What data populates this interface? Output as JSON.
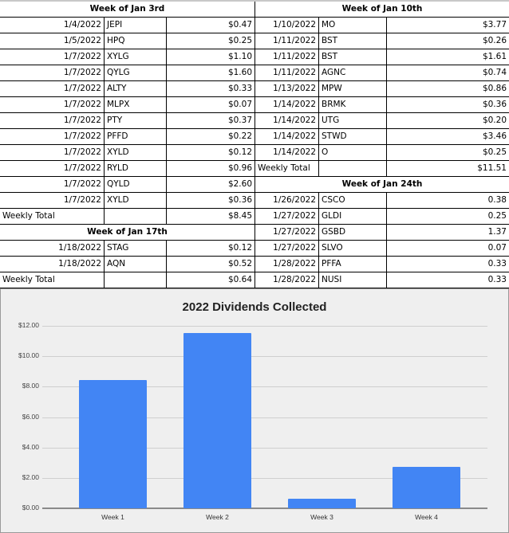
{
  "tables": {
    "week1": {
      "title": "Week of Jan 3rd",
      "rows": [
        {
          "date": "1/4/2022",
          "ticker": "JEPI",
          "amount": "$0.47"
        },
        {
          "date": "1/5/2022",
          "ticker": "HPQ",
          "amount": "$0.25"
        },
        {
          "date": "1/7/2022",
          "ticker": "XYLG",
          "amount": "$1.10"
        },
        {
          "date": "1/7/2022",
          "ticker": "QYLG",
          "amount": "$1.60"
        },
        {
          "date": "1/7/2022",
          "ticker": "ALTY",
          "amount": "$0.33"
        },
        {
          "date": "1/7/2022",
          "ticker": "MLPX",
          "amount": "$0.07"
        },
        {
          "date": "1/7/2022",
          "ticker": "PTY",
          "amount": "$0.37"
        },
        {
          "date": "1/7/2022",
          "ticker": "PFFD",
          "amount": "$0.22"
        },
        {
          "date": "1/7/2022",
          "ticker": "XYLD",
          "amount": "$0.12"
        },
        {
          "date": "1/7/2022",
          "ticker": "RYLD",
          "amount": "$0.96"
        },
        {
          "date": "1/7/2022",
          "ticker": "QYLD",
          "amount": "$2.60"
        },
        {
          "date": "1/7/2022",
          "ticker": "XYLD",
          "amount": "$0.36"
        }
      ],
      "total_label": "Weekly Total",
      "total": "$8.45"
    },
    "week2": {
      "title": "Week of Jan 10th",
      "rows": [
        {
          "date": "1/10/2022",
          "ticker": "MO",
          "amount": "$3.77"
        },
        {
          "date": "1/11/2022",
          "ticker": "BST",
          "amount": "$0.26"
        },
        {
          "date": "1/11/2022",
          "ticker": "BST",
          "amount": "$1.61"
        },
        {
          "date": "1/11/2022",
          "ticker": "AGNC",
          "amount": "$0.74"
        },
        {
          "date": "1/13/2022",
          "ticker": "MPW",
          "amount": "$0.86"
        },
        {
          "date": "1/14/2022",
          "ticker": "BRMK",
          "amount": "$0.36"
        },
        {
          "date": "1/14/2022",
          "ticker": "UTG",
          "amount": "$0.20"
        },
        {
          "date": "1/14/2022",
          "ticker": "STWD",
          "amount": "$3.46"
        },
        {
          "date": "1/14/2022",
          "ticker": "O",
          "amount": "$0.25"
        }
      ],
      "total_label": "Weekly Total",
      "total": "$11.51"
    },
    "week3": {
      "title": "Week of Jan 17th",
      "rows": [
        {
          "date": "1/18/2022",
          "ticker": "STAG",
          "amount": "$0.12"
        },
        {
          "date": "1/18/2022",
          "ticker": "AQN",
          "amount": "$0.52"
        }
      ],
      "total_label": "Weekly Total",
      "total": "$0.64"
    },
    "week4": {
      "title": "Week of Jan 24th",
      "rows": [
        {
          "date": "1/26/2022",
          "ticker": "CSCO",
          "amount": "0.38"
        },
        {
          "date": "1/27/2022",
          "ticker": "GLDI",
          "amount": "0.25"
        },
        {
          "date": "1/27/2022",
          "ticker": "GSBD",
          "amount": "1.37"
        },
        {
          "date": "1/27/2022",
          "ticker": "SLVO",
          "amount": "0.07"
        },
        {
          "date": "1/28/2022",
          "ticker": "PFFA",
          "amount": "0.33"
        },
        {
          "date": "1/28/2022",
          "ticker": "NUSI",
          "amount": "0.33"
        }
      ]
    }
  },
  "chart_data": {
    "type": "bar",
    "title": "2022 Dividends Collected",
    "categories": [
      "Week 1",
      "Week 2",
      "Week 3",
      "Week 4"
    ],
    "values": [
      8.45,
      11.51,
      0.64,
      2.73
    ],
    "xlabel": "",
    "ylabel": "",
    "ylim": [
      0,
      12
    ],
    "yticks": [
      "$0.00",
      "$2.00",
      "$4.00",
      "$6.00",
      "$8.00",
      "$10.00",
      "$12.00"
    ],
    "grid": true,
    "legend": "none",
    "bar_color": "#4285f4",
    "background": "#efefef"
  }
}
